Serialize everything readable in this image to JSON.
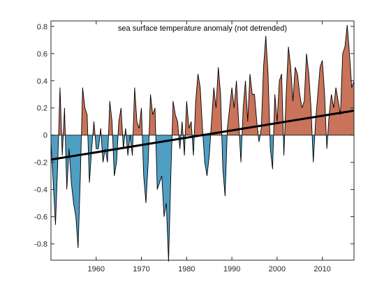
{
  "colors": {
    "positive": "#c8735a",
    "negative": "#4f9ec4",
    "line": "#000000",
    "trend": "#000000",
    "axis": "#262626",
    "background": "#ffffff"
  },
  "chart_data": {
    "type": "area",
    "title": "sea surface temperature anomaly (not detrended)",
    "xlabel": "",
    "ylabel": "",
    "xlim": [
      1950,
      2017
    ],
    "ylim": [
      -0.92,
      0.84
    ],
    "xticks": [
      1960,
      1970,
      1980,
      1990,
      2000,
      2010
    ],
    "yticks": [
      -0.8,
      -0.6,
      -0.4,
      -0.2,
      0,
      0.2,
      0.4,
      0.6,
      0.8
    ],
    "grid": false,
    "fill": "positive anomalies filled red-brown, negative anomalies filled blue",
    "series": [
      {
        "x": [
          1950.0,
          1950.5,
          1951.0,
          1951.5,
          1952.0,
          1952.5,
          1953.0,
          1953.5,
          1954.0,
          1954.5,
          1955.0,
          1955.5,
          1956.0,
          1956.5,
          1957.0,
          1957.5,
          1958.0,
          1958.5,
          1959.0,
          1959.5,
          1960.0,
          1960.5,
          1961.0,
          1961.5,
          1962.0,
          1962.5,
          1963.0,
          1963.5,
          1964.0,
          1964.5,
          1965.0,
          1965.5,
          1966.0,
          1966.5,
          1967.0,
          1967.5,
          1968.0,
          1968.5,
          1969.0,
          1969.5,
          1970.0,
          1970.5,
          1971.0,
          1971.5,
          1972.0,
          1972.5,
          1973.0,
          1973.5,
          1974.0,
          1974.5,
          1975.0,
          1975.5,
          1976.0,
          1976.5,
          1977.0,
          1977.5,
          1978.0,
          1978.5,
          1979.0,
          1979.5,
          1980.0,
          1980.5,
          1981.0,
          1981.5,
          1982.0,
          1982.5,
          1983.0,
          1983.5,
          1984.0,
          1984.5,
          1985.0,
          1985.5,
          1986.0,
          1986.5,
          1987.0,
          1987.5,
          1988.0,
          1988.5,
          1989.0,
          1989.5,
          1990.0,
          1990.5,
          1991.0,
          1991.5,
          1992.0,
          1992.5,
          1993.0,
          1993.5,
          1994.0,
          1994.5,
          1995.0,
          1995.5,
          1996.0,
          1996.5,
          1997.0,
          1997.5,
          1998.0,
          1998.5,
          1999.0,
          1999.5,
          2000.0,
          2000.5,
          2001.0,
          2001.5,
          2002.0,
          2002.5,
          2003.0,
          2003.5,
          2004.0,
          2004.5,
          2005.0,
          2005.5,
          2006.0,
          2006.5,
          2007.0,
          2007.5,
          2008.0,
          2008.5,
          2009.0,
          2009.5,
          2010.0,
          2010.5,
          2011.0,
          2011.5,
          2012.0,
          2012.5,
          2013.0,
          2013.5,
          2014.0,
          2014.5,
          2015.0,
          2015.5,
          2016.0,
          2016.5,
          2017.0
        ],
        "y": [
          -0.05,
          -0.35,
          -0.66,
          -0.2,
          0.35,
          -0.15,
          0.2,
          -0.4,
          -0.1,
          -0.35,
          -0.5,
          -0.6,
          -0.83,
          -0.3,
          0.35,
          0.2,
          0.15,
          -0.35,
          -0.1,
          0.1,
          -0.1,
          -0.1,
          0.05,
          -0.2,
          -0.1,
          -0.2,
          0.25,
          0.1,
          -0.3,
          -0.2,
          0.1,
          0.2,
          -0.1,
          0.05,
          -0.15,
          0.0,
          -0.15,
          0.35,
          0.1,
          0.05,
          0.2,
          -0.3,
          -0.5,
          -0.2,
          0.3,
          0.15,
          0.2,
          -0.4,
          -0.35,
          -0.3,
          -0.6,
          -0.5,
          -0.93,
          -0.3,
          0.25,
          0.15,
          0.1,
          -0.1,
          0.1,
          -0.15,
          0.25,
          0.05,
          0.1,
          -0.15,
          0.25,
          0.45,
          0.35,
          0.05,
          -0.2,
          -0.3,
          -0.15,
          0.1,
          0.35,
          0.2,
          0.5,
          0.3,
          -0.25,
          -0.45,
          0.05,
          0.2,
          0.35,
          0.2,
          0.4,
          0.1,
          -0.2,
          0.2,
          0.4,
          0.1,
          0.45,
          0.3,
          0.3,
          0.1,
          -0.05,
          0.05,
          0.5,
          0.73,
          0.45,
          -0.1,
          -0.25,
          0.3,
          0.1,
          0.4,
          0.45,
          -0.15,
          0.3,
          0.65,
          0.5,
          0.25,
          0.5,
          0.45,
          0.3,
          0.2,
          0.25,
          0.6,
          0.45,
          0.2,
          -0.2,
          0.1,
          0.3,
          0.5,
          0.55,
          0.3,
          -0.1,
          0.15,
          0.3,
          0.2,
          0.35,
          0.25,
          0.15,
          0.6,
          0.65,
          0.81,
          0.6,
          0.35,
          0.4
        ]
      }
    ],
    "trend": {
      "x": [
        1950,
        2017
      ],
      "y": [
        -0.18,
        0.18
      ]
    }
  }
}
